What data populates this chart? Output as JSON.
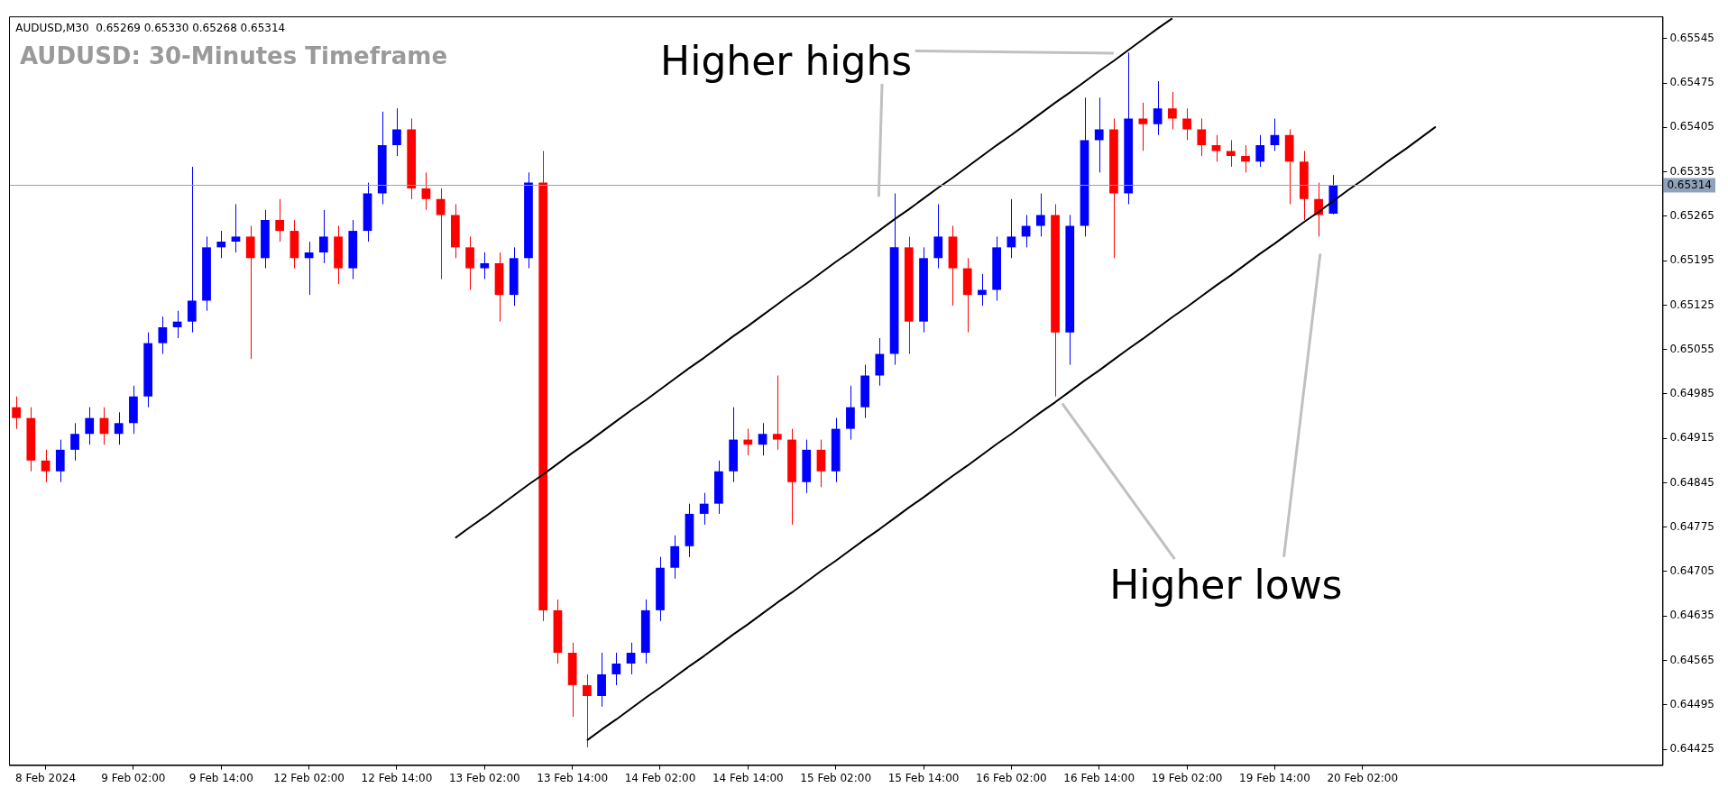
{
  "chart_data": {
    "type": "candlestick",
    "title": "AUDUSD: 30-Minutes Timeframe",
    "annotations": [
      "AUDUSD,M30  0.65269 0.65330 0.65268 0.65314",
      "Higher highs",
      "Higher lows"
    ],
    "categories": [
      null,
      null,
      "8 Feb 2024",
      null,
      null,
      null,
      null,
      null,
      "9 Feb 02:00",
      null,
      null,
      null,
      null,
      null,
      "9 Feb 14:00",
      null,
      null,
      null,
      null,
      null,
      "12 Feb 02:00",
      null,
      null,
      null,
      null,
      null,
      "12 Feb 14:00",
      null,
      null,
      null,
      null,
      null,
      "13 Feb 02:00",
      null,
      null,
      null,
      null,
      null,
      "13 Feb 14:00",
      null,
      null,
      null,
      null,
      null,
      "14 Feb 02:00",
      null,
      null,
      null,
      null,
      null,
      "14 Feb 14:00",
      null,
      null,
      null,
      null,
      null,
      "15 Feb 02:00",
      null,
      null,
      null,
      null,
      null,
      "15 Feb 14:00",
      null,
      null,
      null,
      null,
      null,
      "16 Feb 02:00",
      null,
      null,
      null,
      null,
      null,
      "16 Feb 14:00",
      null,
      null,
      null,
      null,
      null,
      "19 Feb 02:00",
      null,
      null,
      null,
      null,
      null,
      "19 Feb 14:00",
      null,
      null,
      null,
      null,
      null,
      "20 Feb 02:00",
      null,
      null,
      null,
      null,
      null,
      null,
      null,
      null,
      null,
      null,
      null,
      null,
      null,
      null,
      null,
      null,
      null,
      null,
      null,
      null
    ],
    "ohlc": [
      [
        0.64964,
        0.64981,
        0.6493,
        0.64947
      ],
      [
        0.64947,
        0.64964,
        0.64863,
        0.6488
      ],
      [
        0.6488,
        0.64897,
        0.64846,
        0.64863
      ],
      [
        0.64863,
        0.64913,
        0.64846,
        0.64897
      ],
      [
        0.64897,
        0.64939,
        0.6488,
        0.64922
      ],
      [
        0.64922,
        0.64964,
        0.64905,
        0.64947
      ],
      [
        0.64947,
        0.64964,
        0.64905,
        0.64922
      ],
      [
        0.64922,
        0.64956,
        0.64905,
        0.64939
      ],
      [
        0.64939,
        0.64998,
        0.64922,
        0.64981
      ],
      [
        0.64981,
        0.65082,
        0.64964,
        0.65065
      ],
      [
        0.65065,
        0.65107,
        0.65048,
        0.6509
      ],
      [
        0.6509,
        0.65116,
        0.65073,
        0.65099
      ],
      [
        0.65099,
        0.65343,
        0.65082,
        0.65132
      ],
      [
        0.65132,
        0.65233,
        0.65116,
        0.65216
      ],
      [
        0.65216,
        0.65242,
        0.65199,
        0.65225
      ],
      [
        0.65225,
        0.65284,
        0.65208,
        0.65233
      ],
      [
        0.65233,
        0.6525,
        0.6504,
        0.65199
      ],
      [
        0.65199,
        0.65275,
        0.65183,
        0.65259
      ],
      [
        0.65259,
        0.65292,
        0.65225,
        0.65242
      ],
      [
        0.65242,
        0.65259,
        0.65183,
        0.65199
      ],
      [
        0.65199,
        0.65225,
        0.65141,
        0.65208
      ],
      [
        0.65208,
        0.65275,
        0.65191,
        0.65233
      ],
      [
        0.65233,
        0.6525,
        0.65158,
        0.65183
      ],
      [
        0.65183,
        0.65259,
        0.65166,
        0.65242
      ],
      [
        0.65242,
        0.65318,
        0.65225,
        0.65301
      ],
      [
        0.65301,
        0.6543,
        0.65284,
        0.65377
      ],
      [
        0.65377,
        0.65435,
        0.6536,
        0.65402
      ],
      [
        0.65402,
        0.65419,
        0.65292,
        0.65309
      ],
      [
        0.65309,
        0.65334,
        0.65275,
        0.65292
      ],
      [
        0.65292,
        0.65309,
        0.65166,
        0.65267
      ],
      [
        0.65267,
        0.65284,
        0.65199,
        0.65216
      ],
      [
        0.65216,
        0.65233,
        0.65149,
        0.65183
      ],
      [
        0.65183,
        0.65208,
        0.65166,
        0.65191
      ],
      [
        0.65191,
        0.65208,
        0.65099,
        0.65141
      ],
      [
        0.65141,
        0.65216,
        0.65124,
        0.65199
      ],
      [
        0.65199,
        0.65334,
        0.65183,
        0.65318
      ],
      [
        0.65318,
        0.65368,
        0.64627,
        0.64644
      ],
      [
        0.64644,
        0.64661,
        0.6456,
        0.64577
      ],
      [
        0.64577,
        0.64593,
        0.64476,
        0.64526
      ],
      [
        0.64526,
        0.64543,
        0.64428,
        0.64509
      ],
      [
        0.64509,
        0.64577,
        0.64492,
        0.64543
      ],
      [
        0.64543,
        0.64577,
        0.64526,
        0.6456
      ],
      [
        0.6456,
        0.64593,
        0.64543,
        0.64577
      ],
      [
        0.64577,
        0.64661,
        0.6456,
        0.64644
      ],
      [
        0.64644,
        0.64728,
        0.64627,
        0.64711
      ],
      [
        0.64711,
        0.64762,
        0.64694,
        0.64745
      ],
      [
        0.64745,
        0.64812,
        0.64728,
        0.64796
      ],
      [
        0.64796,
        0.64829,
        0.64779,
        0.64812
      ],
      [
        0.64812,
        0.6488,
        0.64796,
        0.64863
      ],
      [
        0.64863,
        0.64964,
        0.64846,
        0.64913
      ],
      [
        0.64913,
        0.6493,
        0.64888,
        0.64905
      ],
      [
        0.64905,
        0.64939,
        0.64888,
        0.64922
      ],
      [
        0.64922,
        0.65014,
        0.64897,
        0.64913
      ],
      [
        0.64913,
        0.6493,
        0.64779,
        0.64846
      ],
      [
        0.64846,
        0.64913,
        0.64829,
        0.64897
      ],
      [
        0.64897,
        0.64913,
        0.64838,
        0.64863
      ],
      [
        0.64863,
        0.64947,
        0.64846,
        0.6493
      ],
      [
        0.6493,
        0.64998,
        0.64913,
        0.64964
      ],
      [
        0.64964,
        0.65031,
        0.64947,
        0.65014
      ],
      [
        0.65014,
        0.65073,
        0.64998,
        0.65048
      ],
      [
        0.65048,
        0.65301,
        0.65031,
        0.65216
      ],
      [
        0.65216,
        0.65233,
        0.65048,
        0.65099
      ],
      [
        0.65099,
        0.65216,
        0.65082,
        0.65199
      ],
      [
        0.65199,
        0.65284,
        0.65183,
        0.65233
      ],
      [
        0.65233,
        0.6525,
        0.65124,
        0.65183
      ],
      [
        0.65183,
        0.65199,
        0.65082,
        0.65141
      ],
      [
        0.65141,
        0.65174,
        0.65124,
        0.65149
      ],
      [
        0.65149,
        0.65233,
        0.65132,
        0.65216
      ],
      [
        0.65216,
        0.65292,
        0.65199,
        0.65233
      ],
      [
        0.65233,
        0.65267,
        0.65216,
        0.6525
      ],
      [
        0.6525,
        0.65301,
        0.65233,
        0.65267
      ],
      [
        0.65267,
        0.65284,
        0.64981,
        0.65082
      ],
      [
        0.65082,
        0.65267,
        0.65031,
        0.6525
      ],
      [
        0.6525,
        0.65452,
        0.65233,
        0.65385
      ],
      [
        0.65385,
        0.65452,
        0.65334,
        0.65402
      ],
      [
        0.65402,
        0.65419,
        0.65199,
        0.65301
      ],
      [
        0.65301,
        0.65523,
        0.65284,
        0.65419
      ],
      [
        0.65419,
        0.65444,
        0.65368,
        0.6541
      ],
      [
        0.6541,
        0.65478,
        0.65393,
        0.65435
      ],
      [
        0.65435,
        0.65461,
        0.65402,
        0.65419
      ],
      [
        0.65419,
        0.65435,
        0.65385,
        0.65402
      ],
      [
        0.65402,
        0.65419,
        0.6536,
        0.65377
      ],
      [
        0.65377,
        0.65393,
        0.65351,
        0.65368
      ],
      [
        0.65368,
        0.65385,
        0.65343,
        0.6536
      ],
      [
        0.6536,
        0.65377,
        0.65334,
        0.65351
      ],
      [
        0.65351,
        0.65393,
        0.65343,
        0.65377
      ],
      [
        0.65377,
        0.65419,
        0.65368,
        0.65393
      ],
      [
        0.65393,
        0.65402,
        0.65284,
        0.65351
      ],
      [
        0.65351,
        0.65368,
        0.65259,
        0.65292
      ],
      [
        0.65292,
        0.65318,
        0.65233,
        0.65267
      ],
      [
        0.65269,
        0.6533,
        0.65268,
        0.65314
      ],
      null,
      null,
      null,
      null,
      null,
      null,
      null,
      null,
      null,
      null,
      null,
      null,
      null,
      null,
      null,
      null,
      null,
      null,
      null,
      null,
      null,
      null
    ],
    "colors": [
      "#ff0000",
      "#ff0000",
      "#ff0000",
      "#0000ff",
      "#0000ff",
      "#0000ff",
      "#ff0000",
      "#0000ff",
      "#0000ff",
      "#0000ff",
      "#0000ff",
      "#0000ff",
      "#0000ff",
      "#0000ff",
      "#0000ff",
      "#0000ff",
      "#ff0000",
      "#0000ff",
      "#ff0000",
      "#ff0000",
      "#0000ff",
      "#0000ff",
      "#ff0000",
      "#0000ff",
      "#0000ff",
      "#0000ff",
      "#0000ff",
      "#ff0000",
      "#ff0000",
      "#ff0000",
      "#ff0000",
      "#ff0000",
      "#0000ff",
      "#ff0000",
      "#0000ff",
      "#0000ff",
      "#ff0000",
      "#ff0000",
      "#ff0000",
      "#ff0000",
      "#0000ff",
      "#0000ff",
      "#0000ff",
      "#0000ff",
      "#0000ff",
      "#0000ff",
      "#0000ff",
      "#0000ff",
      "#0000ff",
      "#0000ff",
      "#ff0000",
      "#0000ff",
      "#ff0000",
      "#ff0000",
      "#0000ff",
      "#ff0000",
      "#0000ff",
      "#0000ff",
      "#0000ff",
      "#0000ff",
      "#0000ff",
      "#ff0000",
      "#0000ff",
      "#0000ff",
      "#ff0000",
      "#ff0000",
      "#0000ff",
      "#0000ff",
      "#0000ff",
      "#0000ff",
      "#0000ff",
      "#ff0000",
      "#0000ff",
      "#0000ff",
      "#0000ff",
      "#ff0000",
      "#0000ff",
      "#ff0000",
      "#0000ff",
      "#ff0000",
      "#ff0000",
      "#ff0000",
      "#ff0000",
      "#ff0000",
      "#ff0000",
      "#0000ff",
      "#0000ff",
      "#ff0000",
      "#ff0000",
      "#ff0000",
      "#0000ff",
      null,
      null,
      null,
      null,
      null,
      null,
      null,
      null,
      null,
      null,
      null,
      null,
      null,
      null,
      null,
      null,
      null,
      null,
      null,
      null,
      null,
      null
    ],
    "series": [
      {
        "type": "line",
        "color": "#000000",
        "values": [
          null,
          null,
          null,
          null,
          null,
          null,
          null,
          null,
          null,
          null,
          null,
          null,
          null,
          null,
          null,
          null,
          null,
          null,
          null,
          null,
          null,
          null,
          null,
          null,
          null,
          null,
          null,
          null,
          null,
          null,
          0.64758,
          0.64775,
          0.64791,
          0.64808,
          0.64825,
          0.64842,
          0.64858,
          0.64875,
          0.64892,
          0.64908,
          0.64925,
          0.64942,
          0.64959,
          0.64975,
          0.64992,
          0.65009,
          0.65026,
          0.65042,
          0.65059,
          0.65076,
          0.65092,
          0.65109,
          0.65126,
          0.65143,
          0.65159,
          0.65176,
          0.65193,
          0.65209,
          0.65226,
          0.65243,
          0.6526,
          0.65276,
          0.65293,
          0.6531,
          0.65326,
          0.65343,
          0.6536,
          0.65377,
          0.65393,
          0.6541,
          0.65427,
          0.65444,
          0.6546,
          0.65477,
          0.65494,
          0.6551,
          0.65527,
          0.65544,
          0.65561,
          0.65577,
          null,
          null,
          null,
          null,
          null,
          null,
          null,
          null,
          null,
          null,
          null,
          null,
          null,
          null,
          null,
          null,
          null,
          null,
          null,
          null,
          null,
          null,
          null,
          null,
          null,
          null,
          null,
          null,
          null,
          null,
          null,
          null,
          null
        ]
      },
      {
        "type": "line",
        "color": "#000000",
        "values": [
          null,
          null,
          null,
          null,
          null,
          null,
          null,
          null,
          null,
          null,
          null,
          null,
          null,
          null,
          null,
          null,
          null,
          null,
          null,
          null,
          null,
          null,
          null,
          null,
          null,
          null,
          null,
          null,
          null,
          null,
          null,
          null,
          null,
          null,
          null,
          null,
          null,
          null,
          null,
          0.64439,
          0.64456,
          0.64472,
          0.64489,
          0.64506,
          0.64522,
          0.64539,
          0.64556,
          0.64572,
          0.64589,
          0.64606,
          0.64622,
          0.64639,
          0.64656,
          0.64672,
          0.64689,
          0.64706,
          0.64722,
          0.64739,
          0.64756,
          0.64772,
          0.64789,
          0.64806,
          0.64822,
          0.64839,
          0.64856,
          0.64872,
          0.64889,
          0.64906,
          0.64922,
          0.64939,
          0.64956,
          0.64972,
          0.64989,
          0.65006,
          0.65022,
          0.65039,
          0.65056,
          0.65072,
          0.65089,
          0.65106,
          0.65122,
          0.65139,
          0.65156,
          0.65172,
          0.65189,
          0.65206,
          0.65222,
          0.65239,
          0.65256,
          0.65272,
          0.65289,
          0.65306,
          0.65322,
          0.65339,
          0.65356,
          0.65372,
          0.65389,
          0.65406,
          null,
          null,
          null,
          null,
          null,
          null,
          null,
          null,
          null,
          null,
          null,
          null,
          null,
          null,
          null
        ]
      }
    ],
    "ylim": [
      0.644,
      0.6558
    ],
    "yticks": [
      0.64425,
      0.64495,
      0.64565,
      0.64635,
      0.64705,
      0.64775,
      0.64845,
      0.64915,
      0.64985,
      0.65055,
      0.65125,
      0.65195,
      0.65265,
      0.65335,
      0.65405,
      0.65475,
      0.65545
    ],
    "ref_lines": [
      {
        "axis": "y",
        "value": 0.65314,
        "label": "0.65314",
        "color": "#8ea2bc"
      }
    ],
    "grid": false,
    "legend": false
  }
}
